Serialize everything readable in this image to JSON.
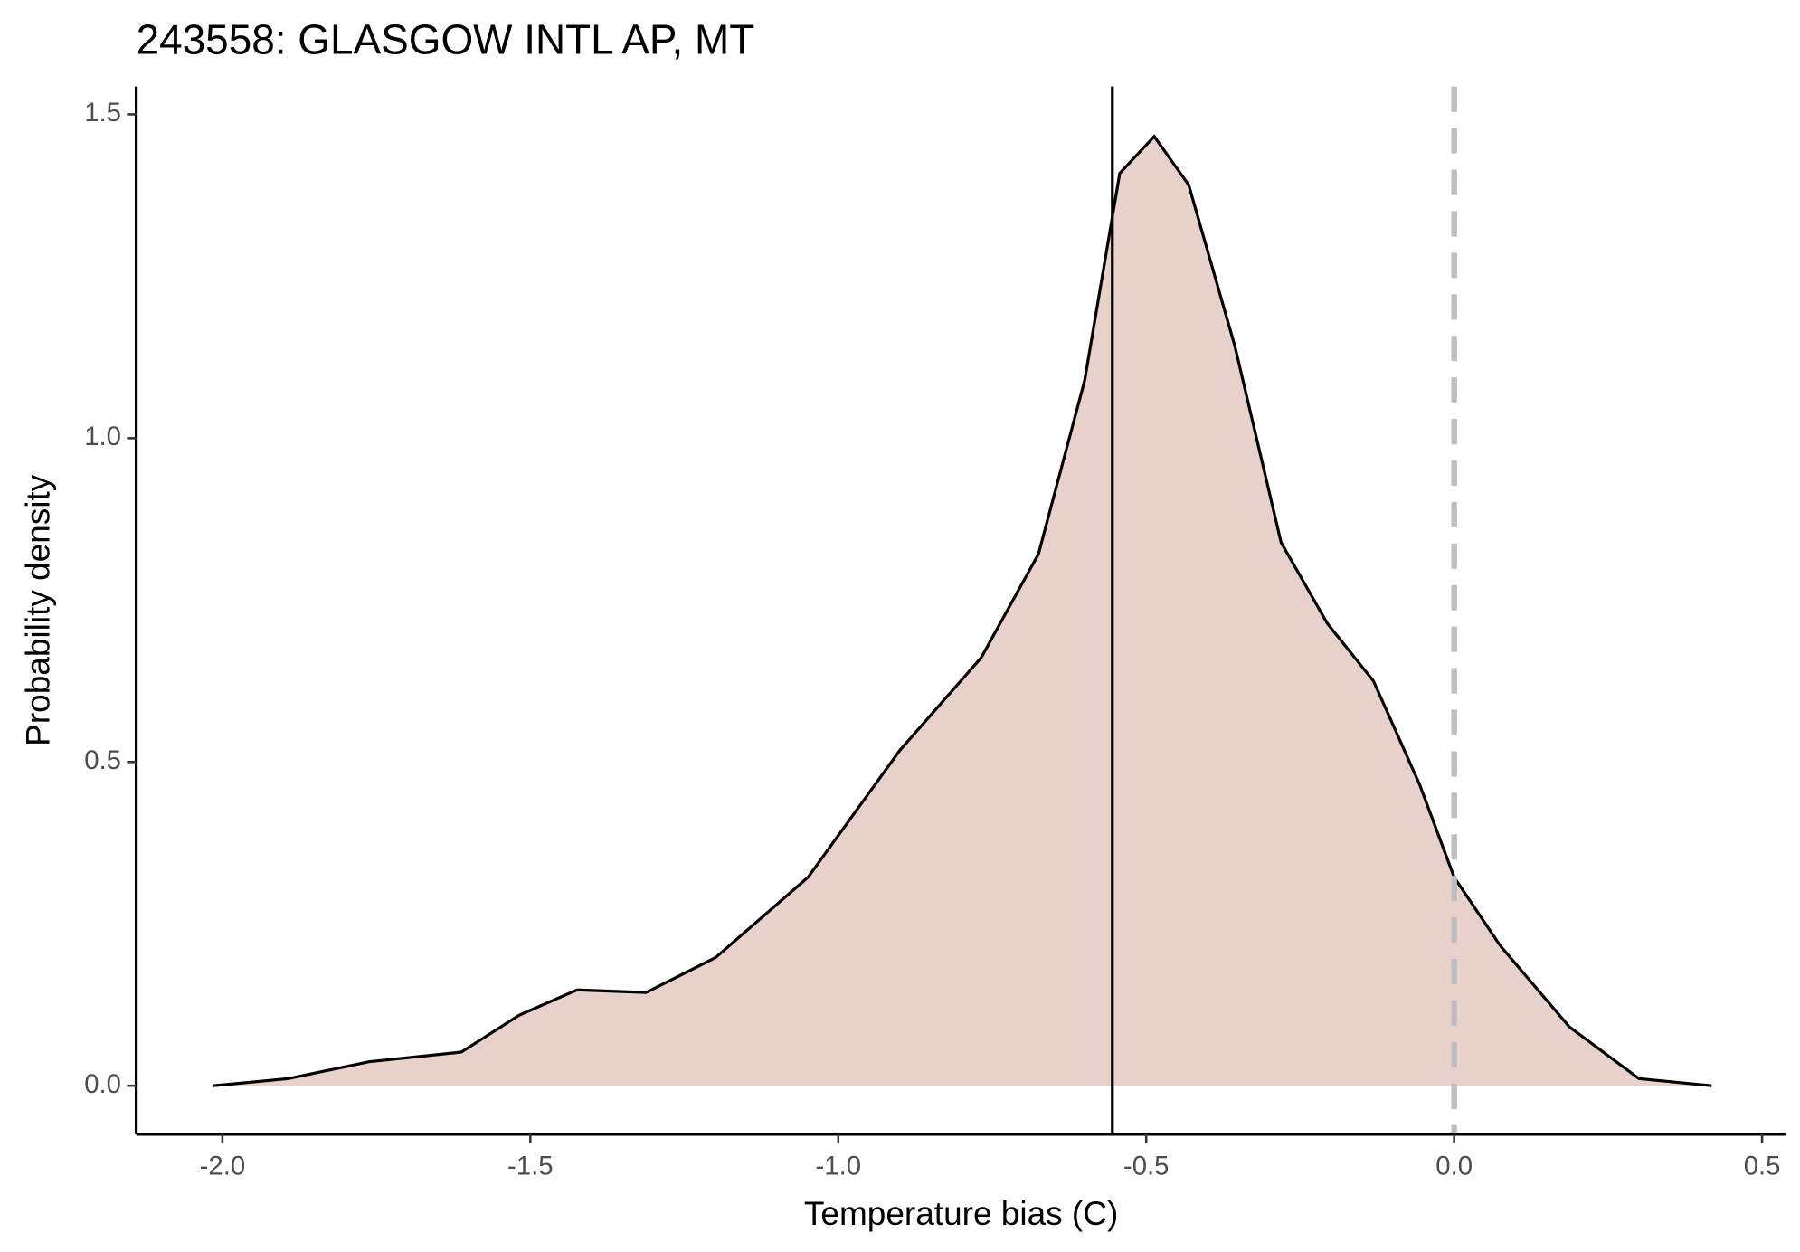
{
  "chart_data": {
    "type": "density",
    "title": "243558: GLASGOW INTL AP, MT",
    "x_label": "Temperature bias (C)",
    "y_label": "Probability density",
    "x": [
      -2.015,
      -1.893,
      -1.762,
      -1.612,
      -1.518,
      -1.424,
      -1.312,
      -1.199,
      -1.049,
      -0.9,
      -0.768,
      -0.675,
      -0.6,
      -0.543,
      -0.487,
      -0.431,
      -0.356,
      -0.281,
      -0.206,
      -0.131,
      -0.056,
      0.0,
      0.075,
      0.187,
      0.3,
      0.418
    ],
    "values": [
      0,
      0.011,
      0.037,
      0.052,
      0.109,
      0.148,
      0.144,
      0.198,
      0.322,
      0.518,
      0.661,
      0.821,
      1.089,
      1.409,
      1.466,
      1.391,
      1.142,
      0.839,
      0.714,
      0.625,
      0.465,
      0.322,
      0.216,
      0.091,
      0.011,
      0
    ],
    "fill": "#e8d1cb",
    "line_color": "#000000",
    "xlim": [
      -2.14,
      0.539
    ],
    "ylim": [
      -0.075,
      1.543
    ],
    "xticks": [
      {
        "value": -2.0,
        "label": "-2.0"
      },
      {
        "value": -1.5,
        "label": "-1.5"
      },
      {
        "value": -1.0,
        "label": "-1.0"
      },
      {
        "value": -0.5,
        "label": "-0.5"
      },
      {
        "value": 0.0,
        "label": "0.0"
      },
      {
        "value": 0.5,
        "label": "0.5"
      }
    ],
    "yticks": [
      {
        "value": 0.0,
        "label": "0.0"
      },
      {
        "value": 0.5,
        "label": "0.5"
      },
      {
        "value": 1.0,
        "label": "1.0"
      },
      {
        "value": 1.5,
        "label": "1.5"
      }
    ],
    "vlines": [
      {
        "x": -0.555,
        "color": "#000000",
        "dashed": false
      },
      {
        "x": 0.0,
        "color": "#bebebe",
        "dashed": true
      }
    ]
  }
}
